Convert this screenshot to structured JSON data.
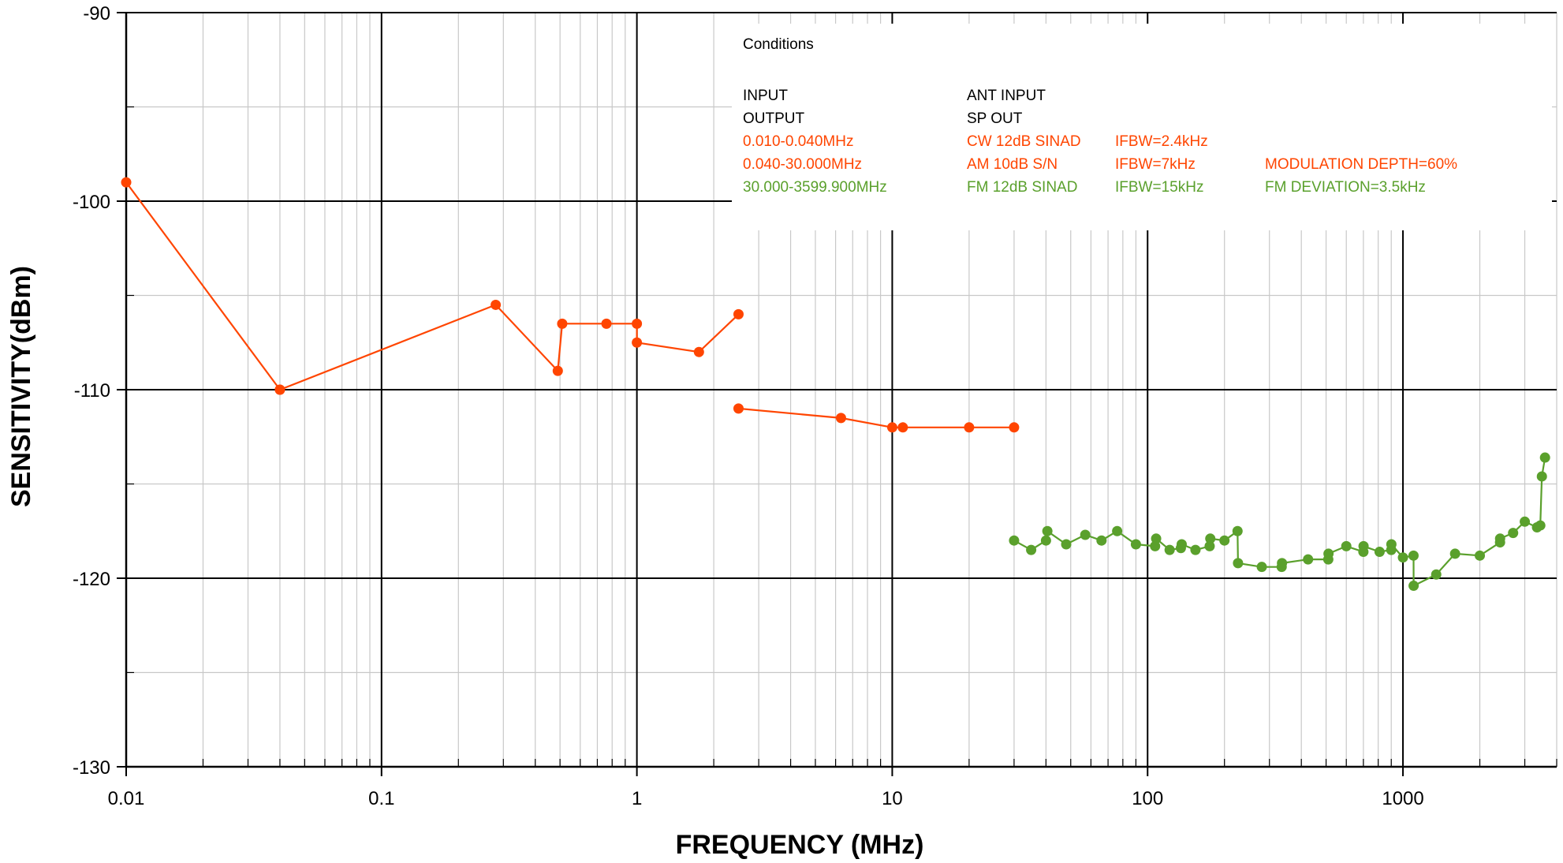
{
  "chart_data": {
    "type": "line",
    "title": "",
    "xlabel": "FREQUENCY (MHz)",
    "ylabel": "SENSITIVITY(dBm)",
    "xscale": "log",
    "xlim": [
      0.01,
      4000
    ],
    "ylim": [
      -130,
      -90
    ],
    "x_ticks": [
      0.01,
      0.1,
      1,
      10,
      100,
      1000
    ],
    "x_tick_labels": [
      "0.01",
      "0.1",
      "1",
      "10",
      "100",
      "1000"
    ],
    "y_ticks": [
      -90,
      -100,
      -110,
      -120,
      -130
    ],
    "y_tick_labels": [
      "-90",
      "-100",
      "-110",
      "-120",
      "-130"
    ],
    "grid": true,
    "legend": "none",
    "colors": {
      "orange": "#FF4500",
      "green": "#5AA02C"
    },
    "series": [
      {
        "color": "#FF4500",
        "x": [
          0.01,
          0.04
        ],
        "y": [
          -99,
          -110
        ]
      },
      {
        "color": "#FF4500",
        "x": [
          0.04,
          0.28,
          0.49,
          0.51,
          0.76,
          1.0,
          1.0,
          1.75,
          2.5
        ],
        "y": [
          -110,
          -105.5,
          -109,
          -106.5,
          -106.5,
          -106.5,
          -107.5,
          -108,
          -106
        ]
      },
      {
        "color": "#FF4500",
        "x": [
          2.5,
          6.3,
          10,
          11,
          20,
          30
        ],
        "y": [
          -111,
          -111.5,
          -112,
          -112,
          -112,
          -112
        ]
      },
      {
        "color": "#5AA02C",
        "x": [
          30,
          35,
          40,
          40.5,
          48,
          57,
          66,
          76,
          90,
          107,
          108,
          122,
          135,
          136,
          154,
          175,
          176,
          200,
          225,
          226,
          280,
          335,
          336,
          425,
          510,
          511,
          600,
          700,
          701,
          810,
          900,
          901,
          1000,
          1100,
          1101,
          1350,
          1600,
          2000,
          2400,
          2401,
          2700,
          3000,
          3350,
          3450,
          3500,
          3600
        ],
        "y": [
          -118,
          -118.5,
          -118,
          -117.5,
          -118.2,
          -117.7,
          -118,
          -117.5,
          -118.2,
          -118.3,
          -117.9,
          -118.5,
          -118.4,
          -118.2,
          -118.5,
          -118.3,
          -117.9,
          -118,
          -117.5,
          -119.2,
          -119.4,
          -119.4,
          -119.2,
          -119,
          -119,
          -118.7,
          -118.3,
          -118.6,
          -118.3,
          -118.6,
          -118.5,
          -118.2,
          -118.9,
          -118.8,
          -120.4,
          -119.8,
          -118.7,
          -118.8,
          -118.1,
          -117.9,
          -117.6,
          -117.0,
          -117.3,
          -117.2,
          -114.6,
          -113.6
        ]
      }
    ],
    "conditions": {
      "title": "Conditions",
      "header": [
        {
          "col1": "INPUT",
          "col2": "ANT INPUT",
          "col3": "",
          "col4": ""
        },
        {
          "col1": "OUTPUT",
          "col2": "SP OUT",
          "col3": "",
          "col4": ""
        }
      ],
      "rows": [
        {
          "color": "#FF4500",
          "col1": "0.010-0.040MHz",
          "col2": "CW  12dB SINAD",
          "col3": "IFBW=2.4kHz",
          "col4": ""
        },
        {
          "color": "#FF4500",
          "col1": "0.040-30.000MHz",
          "col2": "AM  10dB S/N",
          "col3": "IFBW=7kHz",
          "col4": "MODULATION DEPTH=60%"
        },
        {
          "color": "#5AA02C",
          "col1": "30.000-3599.900MHz",
          "col2": "FM  12dB SINAD",
          "col3": "IFBW=15kHz",
          "col4": "FM DEVIATION=3.5kHz"
        }
      ]
    }
  }
}
